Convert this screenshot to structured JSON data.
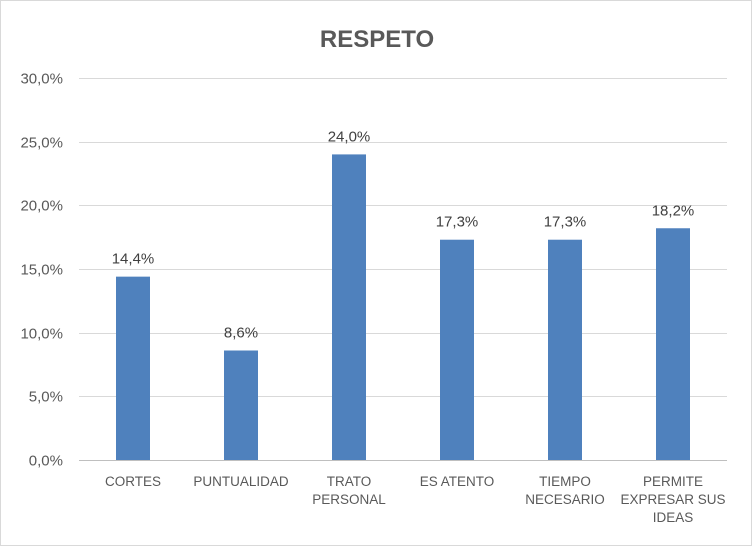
{
  "chart_data": {
    "type": "bar",
    "title": "RESPETO",
    "categories": [
      [
        "CORTES"
      ],
      [
        "PUNTUALIDAD"
      ],
      [
        "TRATO",
        "PERSONAL"
      ],
      [
        "ES ATENTO"
      ],
      [
        "TIEMPO",
        "NECESARIO"
      ],
      [
        "PERMITE",
        "EXPRESAR SUS",
        "IDEAS"
      ]
    ],
    "values": [
      14.4,
      8.6,
      24.0,
      17.3,
      17.3,
      18.2
    ],
    "data_labels": [
      "14,4%",
      "8,6%",
      "24,0%",
      "17,3%",
      "17,3%",
      "18,2%"
    ],
    "y_ticks": [
      0,
      5,
      10,
      15,
      20,
      25,
      30
    ],
    "y_tick_labels": [
      "0,0%",
      "5,0%",
      "10,0%",
      "15,0%",
      "20,0%",
      "25,0%",
      "30,0%"
    ],
    "ylim": [
      0,
      30
    ],
    "xlabel": "",
    "ylabel": "",
    "grid": true,
    "legend": "none",
    "bar_color": "#4f81bd"
  }
}
